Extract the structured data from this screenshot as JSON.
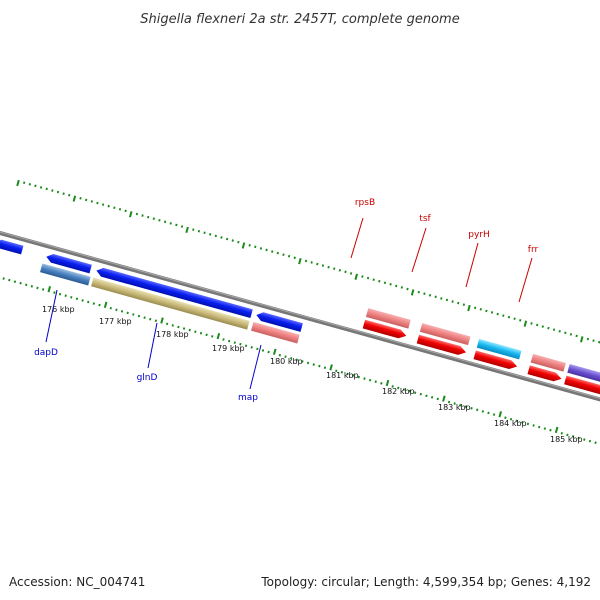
{
  "title": "Shigella flexneri 2a str. 2457T, complete genome",
  "footer": {
    "accession": "Accession: NC_004741",
    "summary": "Topology: circular; Length: 4,599,354 bp; Genes: 4,192"
  },
  "colors": {
    "backbone": "#777777",
    "ticks": "#1a8a1a",
    "forward_label": "#cc0000",
    "reverse_label": "#0000cc"
  },
  "kbp_labels": [
    "176 kbp",
    "177 kbp",
    "178 kbp",
    "179 kbp",
    "180 kbp",
    "181 kbp",
    "182 kbp",
    "183 kbp",
    "184 kbp",
    "185 kbp"
  ],
  "gene_labels": {
    "rpsB": "rpsB",
    "tsf": "tsf",
    "pyrH": "pyrH",
    "frr": "frr",
    "dapD": "dapD",
    "glnD": "glnD",
    "map": "map"
  }
}
